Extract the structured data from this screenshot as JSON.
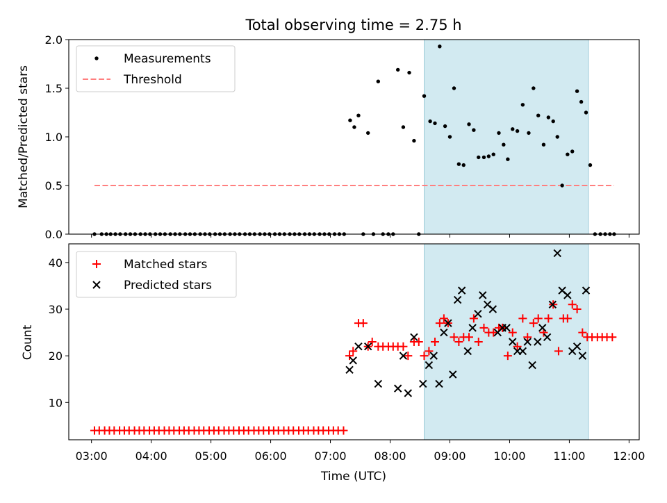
{
  "title": "Total observing time = 2.75 h",
  "x_tick_labels": [
    "03:00",
    "04:00",
    "05:00",
    "06:00",
    "07:00",
    "08:00",
    "09:00",
    "10:00",
    "11:00",
    "12:00"
  ],
  "chart_data": [
    {
      "type": "scatter",
      "xlabel": "",
      "ylabel": "Matched/Predicted stars",
      "x_unit": "hours UTC",
      "xlim": [
        2.62,
        12.17
      ],
      "ylim": [
        0,
        2.0
      ],
      "y_ticks": [
        "0.0",
        "0.5",
        "1.0",
        "1.5",
        "2.0"
      ],
      "legend_position": "upper left",
      "legend": [
        "Measurements",
        "Threshold"
      ],
      "shaded_interval": [
        8.57,
        11.32
      ],
      "shade_color": "#add8e6",
      "threshold": {
        "name": "Threshold",
        "value": 0.5,
        "x_range": [
          3.05,
          11.75
        ],
        "color": "#ff7f7f"
      },
      "series": [
        {
          "name": "Measurements",
          "marker": "dot",
          "color": "#000000",
          "points": [
            [
              3.05,
              0
            ],
            [
              3.17,
              0
            ],
            [
              3.25,
              0
            ],
            [
              3.32,
              0
            ],
            [
              3.4,
              0
            ],
            [
              3.48,
              0
            ],
            [
              3.57,
              0
            ],
            [
              3.65,
              0
            ],
            [
              3.73,
              0
            ],
            [
              3.82,
              0
            ],
            [
              3.9,
              0
            ],
            [
              3.98,
              0
            ],
            [
              4.07,
              0
            ],
            [
              4.15,
              0
            ],
            [
              4.23,
              0
            ],
            [
              4.32,
              0
            ],
            [
              4.4,
              0
            ],
            [
              4.48,
              0
            ],
            [
              4.57,
              0
            ],
            [
              4.65,
              0
            ],
            [
              4.73,
              0
            ],
            [
              4.82,
              0
            ],
            [
              4.9,
              0
            ],
            [
              4.98,
              0
            ],
            [
              5.07,
              0
            ],
            [
              5.15,
              0
            ],
            [
              5.23,
              0
            ],
            [
              5.32,
              0
            ],
            [
              5.4,
              0
            ],
            [
              5.48,
              0
            ],
            [
              5.57,
              0
            ],
            [
              5.65,
              0
            ],
            [
              5.73,
              0
            ],
            [
              5.82,
              0
            ],
            [
              5.9,
              0
            ],
            [
              5.98,
              0
            ],
            [
              6.07,
              0
            ],
            [
              6.15,
              0
            ],
            [
              6.23,
              0
            ],
            [
              6.32,
              0
            ],
            [
              6.4,
              0
            ],
            [
              6.48,
              0
            ],
            [
              6.57,
              0
            ],
            [
              6.65,
              0
            ],
            [
              6.73,
              0
            ],
            [
              6.82,
              0
            ],
            [
              6.9,
              0
            ],
            [
              6.98,
              0
            ],
            [
              7.07,
              0
            ],
            [
              7.15,
              0
            ],
            [
              7.23,
              0
            ],
            [
              7.33,
              1.17
            ],
            [
              7.4,
              1.1
            ],
            [
              7.47,
              1.22
            ],
            [
              7.55,
              0
            ],
            [
              7.63,
              1.04
            ],
            [
              7.72,
              0
            ],
            [
              7.8,
              1.57
            ],
            [
              7.88,
              0
            ],
            [
              7.97,
              0
            ],
            [
              8.05,
              0
            ],
            [
              8.13,
              1.69
            ],
            [
              8.22,
              1.1
            ],
            [
              8.32,
              1.66
            ],
            [
              8.4,
              0.96
            ],
            [
              8.48,
              0
            ],
            [
              8.57,
              1.42
            ],
            [
              8.67,
              1.16
            ],
            [
              8.75,
              1.14
            ],
            [
              8.83,
              1.93
            ],
            [
              8.92,
              1.11
            ],
            [
              9.0,
              1.0
            ],
            [
              9.07,
              1.5
            ],
            [
              9.15,
              0.72
            ],
            [
              9.23,
              0.71
            ],
            [
              9.32,
              1.13
            ],
            [
              9.4,
              1.07
            ],
            [
              9.48,
              0.79
            ],
            [
              9.57,
              0.79
            ],
            [
              9.65,
              0.8
            ],
            [
              9.73,
              0.82
            ],
            [
              9.82,
              1.04
            ],
            [
              9.9,
              0.92
            ],
            [
              9.97,
              0.77
            ],
            [
              10.05,
              1.08
            ],
            [
              10.13,
              1.06
            ],
            [
              10.22,
              1.33
            ],
            [
              10.32,
              1.04
            ],
            [
              10.4,
              1.5
            ],
            [
              10.48,
              1.22
            ],
            [
              10.57,
              0.92
            ],
            [
              10.65,
              1.2
            ],
            [
              10.73,
              1.16
            ],
            [
              10.8,
              1.0
            ],
            [
              10.88,
              0.5
            ],
            [
              10.97,
              0.82
            ],
            [
              11.05,
              0.85
            ],
            [
              11.13,
              1.47
            ],
            [
              11.2,
              1.36
            ],
            [
              11.28,
              1.25
            ],
            [
              11.35,
              0.71
            ],
            [
              11.43,
              0
            ],
            [
              11.52,
              0
            ],
            [
              11.6,
              0
            ],
            [
              11.68,
              0
            ],
            [
              11.75,
              0
            ]
          ]
        }
      ]
    },
    {
      "type": "scatter",
      "xlabel": "Time (UTC)",
      "ylabel": "Count",
      "x_unit": "hours UTC",
      "xlim": [
        2.62,
        12.17
      ],
      "ylim": [
        2,
        44
      ],
      "y_ticks": [
        "10",
        "20",
        "30",
        "40"
      ],
      "legend_position": "upper left",
      "legend": [
        "Matched stars",
        "Predicted stars"
      ],
      "shaded_interval": [
        8.57,
        11.32
      ],
      "shade_color": "#add8e6",
      "series": [
        {
          "name": "Matched stars",
          "marker": "plus",
          "color": "#ff0000",
          "points": [
            [
              3.05,
              4
            ],
            [
              3.13,
              4
            ],
            [
              3.22,
              4
            ],
            [
              3.3,
              4
            ],
            [
              3.38,
              4
            ],
            [
              3.47,
              4
            ],
            [
              3.55,
              4
            ],
            [
              3.63,
              4
            ],
            [
              3.72,
              4
            ],
            [
              3.8,
              4
            ],
            [
              3.88,
              4
            ],
            [
              3.97,
              4
            ],
            [
              4.05,
              4
            ],
            [
              4.13,
              4
            ],
            [
              4.22,
              4
            ],
            [
              4.3,
              4
            ],
            [
              4.38,
              4
            ],
            [
              4.47,
              4
            ],
            [
              4.55,
              4
            ],
            [
              4.63,
              4
            ],
            [
              4.72,
              4
            ],
            [
              4.8,
              4
            ],
            [
              4.88,
              4
            ],
            [
              4.97,
              4
            ],
            [
              5.05,
              4
            ],
            [
              5.13,
              4
            ],
            [
              5.22,
              4
            ],
            [
              5.3,
              4
            ],
            [
              5.38,
              4
            ],
            [
              5.47,
              4
            ],
            [
              5.55,
              4
            ],
            [
              5.63,
              4
            ],
            [
              5.72,
              4
            ],
            [
              5.8,
              4
            ],
            [
              5.88,
              4
            ],
            [
              5.97,
              4
            ],
            [
              6.05,
              4
            ],
            [
              6.13,
              4
            ],
            [
              6.22,
              4
            ],
            [
              6.3,
              4
            ],
            [
              6.38,
              4
            ],
            [
              6.47,
              4
            ],
            [
              6.55,
              4
            ],
            [
              6.63,
              4
            ],
            [
              6.72,
              4
            ],
            [
              6.8,
              4
            ],
            [
              6.88,
              4
            ],
            [
              6.97,
              4
            ],
            [
              7.05,
              4
            ],
            [
              7.13,
              4
            ],
            [
              7.22,
              4
            ],
            [
              7.32,
              20
            ],
            [
              7.38,
              21
            ],
            [
              7.47,
              27
            ],
            [
              7.55,
              27
            ],
            [
              7.63,
              22
            ],
            [
              7.7,
              23
            ],
            [
              7.8,
              22
            ],
            [
              7.88,
              22
            ],
            [
              7.97,
              22
            ],
            [
              8.05,
              22
            ],
            [
              8.13,
              22
            ],
            [
              8.22,
              22
            ],
            [
              8.3,
              20
            ],
            [
              8.4,
              23
            ],
            [
              8.48,
              23
            ],
            [
              8.57,
              20
            ],
            [
              8.65,
              21
            ],
            [
              8.75,
              23
            ],
            [
              8.83,
              27
            ],
            [
              8.9,
              28
            ],
            [
              8.97,
              27
            ],
            [
              9.07,
              24
            ],
            [
              9.15,
              23
            ],
            [
              9.23,
              24
            ],
            [
              9.32,
              24
            ],
            [
              9.4,
              28
            ],
            [
              9.48,
              23
            ],
            [
              9.57,
              26
            ],
            [
              9.65,
              25
            ],
            [
              9.73,
              25
            ],
            [
              9.82,
              26
            ],
            [
              9.88,
              26
            ],
            [
              9.97,
              20
            ],
            [
              10.05,
              25
            ],
            [
              10.13,
              22
            ],
            [
              10.22,
              28
            ],
            [
              10.3,
              24
            ],
            [
              10.4,
              27
            ],
            [
              10.48,
              28
            ],
            [
              10.57,
              25
            ],
            [
              10.65,
              28
            ],
            [
              10.73,
              31
            ],
            [
              10.82,
              21
            ],
            [
              10.9,
              28
            ],
            [
              10.97,
              28
            ],
            [
              11.05,
              31
            ],
            [
              11.13,
              30
            ],
            [
              11.22,
              25
            ],
            [
              11.3,
              24
            ],
            [
              11.38,
              24
            ],
            [
              11.47,
              24
            ],
            [
              11.55,
              24
            ],
            [
              11.63,
              24
            ],
            [
              11.72,
              24
            ]
          ]
        },
        {
          "name": "Predicted stars",
          "marker": "x",
          "color": "#000000",
          "points": [
            [
              7.32,
              17
            ],
            [
              7.38,
              19
            ],
            [
              7.47,
              22
            ],
            [
              7.63,
              22
            ],
            [
              7.8,
              14
            ],
            [
              8.13,
              13
            ],
            [
              8.22,
              20
            ],
            [
              8.3,
              12
            ],
            [
              8.4,
              24
            ],
            [
              8.55,
              14
            ],
            [
              8.65,
              18
            ],
            [
              8.73,
              20
            ],
            [
              8.82,
              14
            ],
            [
              8.9,
              25
            ],
            [
              8.97,
              27
            ],
            [
              9.05,
              16
            ],
            [
              9.13,
              32
            ],
            [
              9.2,
              34
            ],
            [
              9.3,
              21
            ],
            [
              9.38,
              26
            ],
            [
              9.47,
              29
            ],
            [
              9.55,
              33
            ],
            [
              9.63,
              31
            ],
            [
              9.72,
              30
            ],
            [
              9.8,
              25
            ],
            [
              9.88,
              26
            ],
            [
              9.95,
              26
            ],
            [
              10.05,
              23
            ],
            [
              10.13,
              21
            ],
            [
              10.22,
              21
            ],
            [
              10.3,
              23
            ],
            [
              10.38,
              18
            ],
            [
              10.47,
              23
            ],
            [
              10.55,
              26
            ],
            [
              10.63,
              24
            ],
            [
              10.72,
              31
            ],
            [
              10.8,
              42
            ],
            [
              10.88,
              34
            ],
            [
              10.97,
              33
            ],
            [
              11.05,
              21
            ],
            [
              11.13,
              22
            ],
            [
              11.22,
              20
            ],
            [
              11.28,
              34
            ]
          ]
        }
      ]
    }
  ]
}
